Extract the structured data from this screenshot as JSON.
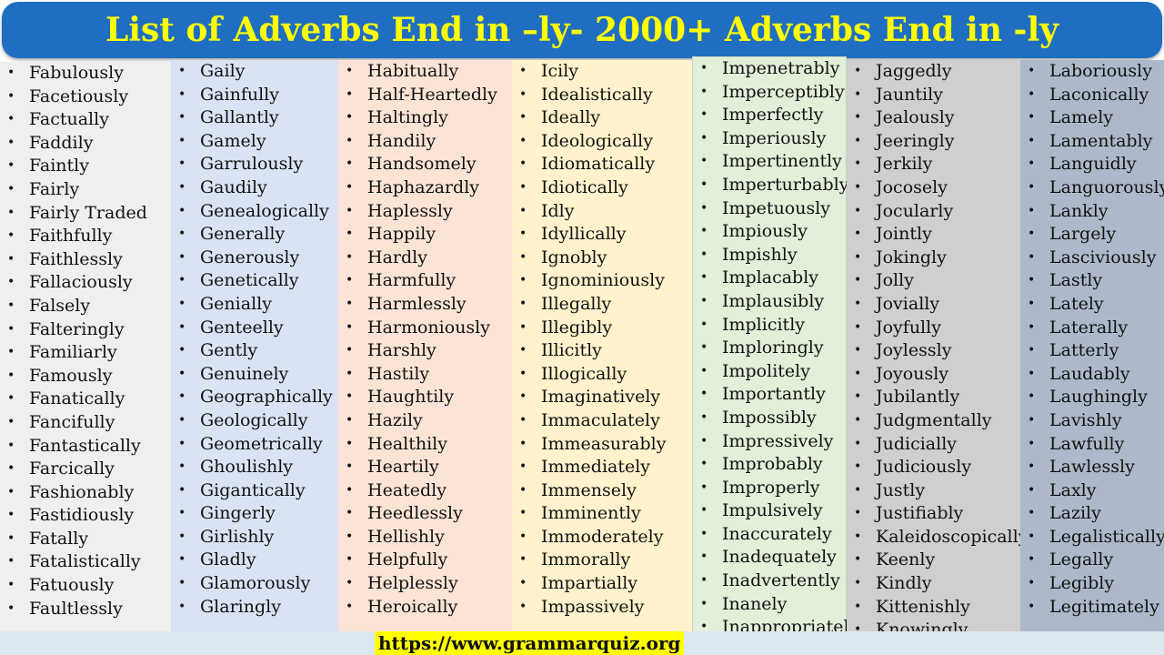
{
  "title": "List of Adverbs End in –ly- 2000+ Adverbs End in -ly",
  "footer_url": "https://www.grammarquiz.org",
  "colors": {
    "header_bg": "#1f6ec2",
    "title_text": "#ffff00",
    "footer_highlight": "#ffff00"
  },
  "columns": [
    {
      "bg": "#efefef",
      "items": [
        "Fabulously",
        "Facetiously",
        "Factually",
        "Faddily",
        "Faintly",
        "Fairly",
        "Fairly Traded",
        "Faithfully",
        "Faithlessly",
        "Fallaciously",
        "Falsely",
        "Falteringly",
        "Familiarly",
        "Famously",
        "Fanatically",
        "Fancifully",
        "Fantastically",
        "Farcically",
        "Fashionably",
        "Fastidiously",
        "Fatally",
        "Fatalistically",
        "Fatuously",
        "Faultlessly"
      ]
    },
    {
      "bg": "#dae3f3",
      "items": [
        "Gaily",
        "Gainfully",
        "Gallantly",
        "Gamely",
        "Garrulously",
        "Gaudily",
        "Genealogically",
        "Generally",
        "Generously",
        "Genetically",
        "Genially",
        "Genteelly",
        "Gently",
        "Genuinely",
        "Geographically",
        "Geologically",
        "Geometrically",
        "Ghoulishly",
        "Gigantically",
        "Gingerly",
        "Girlishly",
        "Gladly",
        "Glamorously",
        "Glaringly"
      ]
    },
    {
      "bg": "#fbe4d6",
      "items": [
        "Habitually",
        "Half-Heartedly",
        "Haltingly",
        "Handily",
        "Handsomely",
        "Haphazardly",
        "Haplessly",
        "Happily",
        "Hardly",
        "Harmfully",
        "Harmlessly",
        "Harmoniously",
        "Harshly",
        "Hastily",
        "Haughtily",
        "Hazily",
        "Healthily",
        "Heartily",
        "Heatedly",
        "Heedlessly",
        "Hellishly",
        "Helpfully",
        "Helplessly",
        "Heroically"
      ]
    },
    {
      "bg": "#fff2cc",
      "items": [
        "Icily",
        "Idealistically",
        "Ideally",
        "Ideologically",
        "Idiomatically",
        "Idiotically",
        "Idly",
        "Idyllically",
        "Ignobly",
        "Ignominiously",
        "Illegally",
        "Illegibly",
        "Illicitly",
        "Illogically",
        "Imaginatively",
        "Immaculately",
        "Immeasurably",
        "Immediately",
        "Immensely",
        "Imminently",
        "Immoderately",
        "Immorally",
        "Impartially",
        "Impassively"
      ]
    },
    {
      "bg": "#e2efd9",
      "items": [
        "Impenetrably",
        "Imperceptibly",
        "Imperfectly",
        "Imperiously",
        "Impertinently",
        "Imperturbably",
        "Impetuously",
        "Impiously",
        "Impishly",
        "Implacably",
        "Implausibly",
        "Implicitly",
        "Imploringly",
        "Impolitely",
        "Importantly",
        "Impossibly",
        "Impressively",
        "Improbably",
        "Improperly",
        "Impulsively",
        "Inaccurately",
        "Inadequately",
        "Inadvertently",
        "Inanely",
        "Inappropriately"
      ]
    },
    {
      "bg": "#d0cece",
      "items": [
        "Jaggedly",
        "Jauntily",
        "Jealously",
        "Jeeringly",
        "Jerkily",
        "Jocosely",
        "Jocularly",
        "Jointly",
        "Jokingly",
        "Jolly",
        "Jovially",
        "Joyfully",
        "Joylessly",
        "Joyously",
        "Jubilantly",
        "Judgmentally",
        "Judicially",
        "Judiciously",
        "Justly",
        "Justifiably",
        "Kaleidoscopically",
        "Keenly",
        "Kindly",
        "Kittenishly",
        "Knowingly"
      ]
    },
    {
      "bg": "#adb9ca",
      "items": [
        "Laboriously",
        "Laconically",
        "Lamely",
        "Lamentably",
        "Languidly",
        "Languorously",
        "Lankly",
        "Largely",
        "Lasciviously",
        "Lastly",
        "Lately",
        "Laterally",
        "Latterly",
        "Laudably",
        "Laughingly",
        "Lavishly",
        "Lawfully",
        "Lawlessly",
        "Laxly",
        "Lazily",
        "Legalistically",
        "Legally",
        "Legibly",
        "Legitimately"
      ]
    }
  ]
}
